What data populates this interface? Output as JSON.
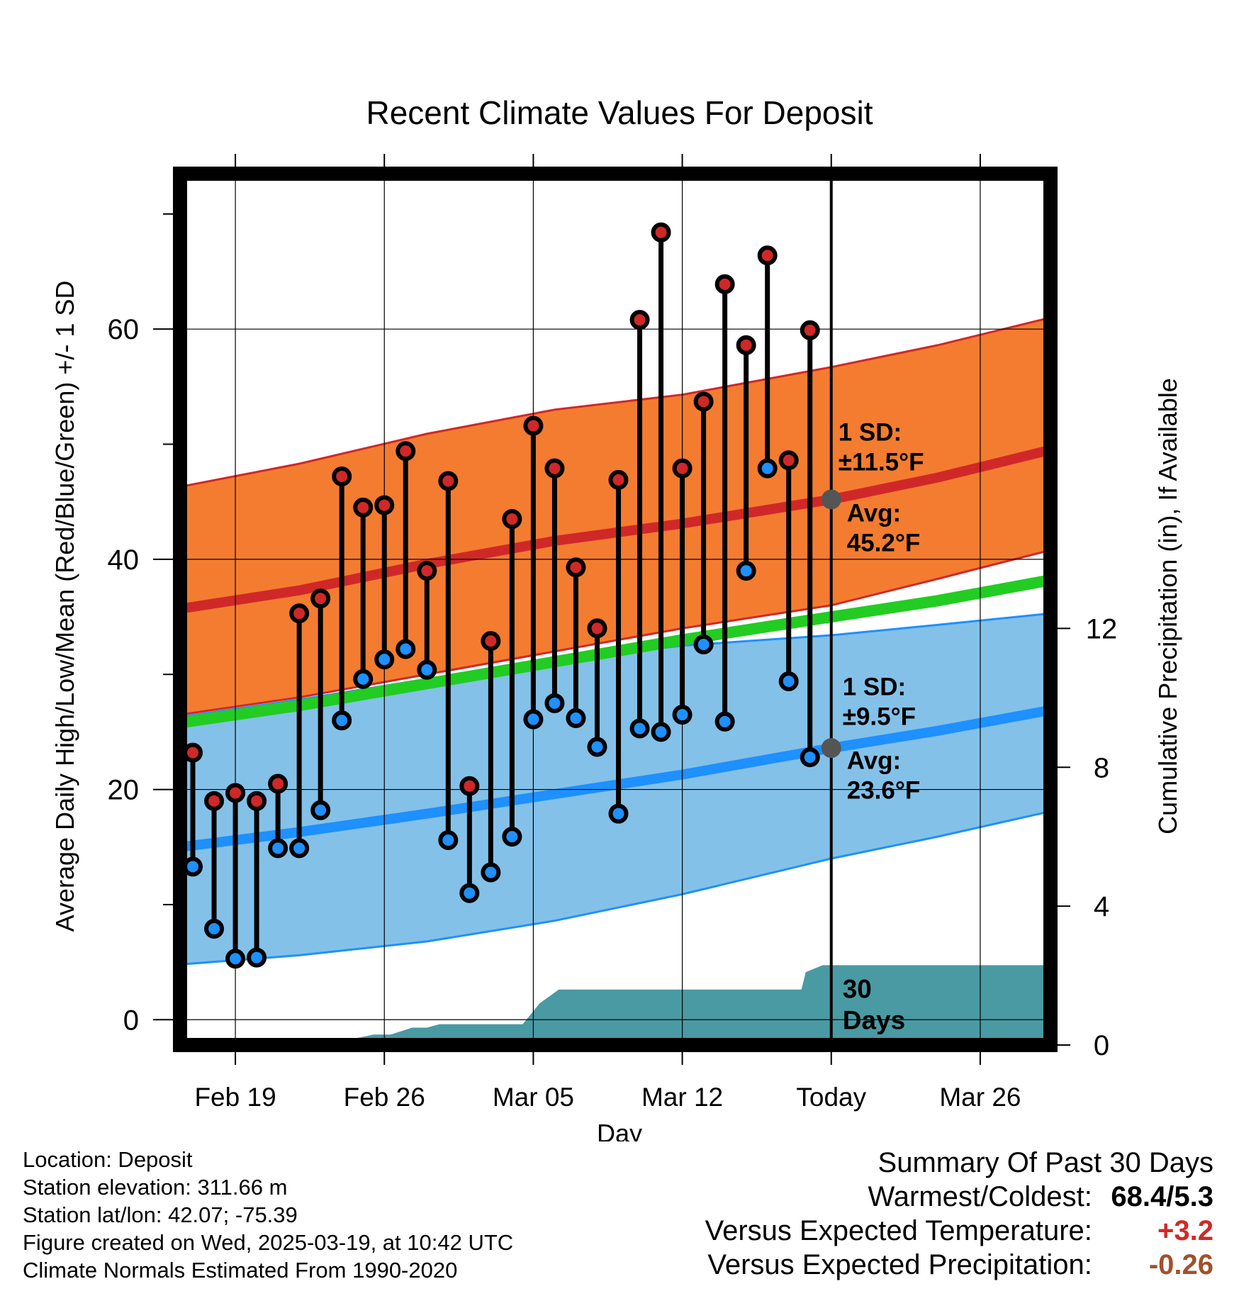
{
  "chart_data": {
    "type": "line",
    "title": "Recent Climate Values For Deposit",
    "xlabel": "Day",
    "ylabel": "Average Daily High/Low/Mean (Red/Blue/Green) +/- 1 SD",
    "y2label": "Cumulative Precipitation (in), If Available",
    "x_ticks": [
      "Feb 19",
      "Feb 26",
      "Mar 05",
      "Mar 12",
      "Today",
      "Mar 26"
    ],
    "x_tick_day": [
      0,
      7,
      14,
      21,
      28,
      35
    ],
    "xlim": [
      -2.6,
      38.3
    ],
    "ylim": [
      -2.2,
      73.5
    ],
    "y_ticks": [
      0,
      20,
      40,
      60
    ],
    "y2lim": [
      0,
      25.1
    ],
    "y2_ticks": [
      0,
      4,
      8,
      12
    ],
    "grid": true,
    "today_day": 28,
    "daily": {
      "day": [
        -2,
        -1,
        0,
        1,
        2,
        3,
        4,
        5,
        6,
        7,
        8,
        9,
        10,
        11,
        12,
        13,
        14,
        15,
        16,
        17,
        18,
        19,
        20,
        21,
        22,
        23,
        24,
        25,
        26,
        27
      ],
      "high": [
        23.2,
        19.0,
        19.7,
        19.0,
        20.5,
        35.3,
        36.6,
        47.2,
        44.5,
        44.7,
        49.4,
        39.0,
        46.8,
        20.3,
        32.9,
        43.5,
        51.6,
        47.9,
        39.3,
        34.0,
        46.9,
        60.8,
        68.4,
        47.9,
        53.7,
        63.9,
        58.6,
        66.4,
        48.6,
        59.9
      ],
      "low": [
        13.3,
        7.9,
        5.3,
        5.4,
        14.9,
        14.9,
        18.2,
        26.0,
        29.6,
        31.3,
        32.2,
        30.4,
        15.6,
        11.0,
        12.8,
        15.9,
        26.1,
        27.5,
        26.2,
        23.7,
        17.9,
        25.3,
        25.0,
        26.5,
        32.6,
        25.9,
        39.0,
        47.9,
        29.4,
        22.8
      ]
    },
    "normals": {
      "day": [
        -2.6,
        3,
        9,
        15,
        21,
        28,
        33,
        38.3
      ],
      "high_mean": [
        35.7,
        37.3,
        39.6,
        41.6,
        43.1,
        45.2,
        47.1,
        49.5
      ],
      "high_sd_upper": [
        46.3,
        48.3,
        50.9,
        53.0,
        54.3,
        56.7,
        58.6,
        61.0
      ],
      "high_sd_lower": [
        26.5,
        28.0,
        30.0,
        32.0,
        34.0,
        36.0,
        38.3,
        40.8
      ],
      "low_mean": [
        15.0,
        16.3,
        17.9,
        19.6,
        21.3,
        23.6,
        25.1,
        26.9
      ],
      "low_sd_upper": [
        26.3,
        27.8,
        29.6,
        31.2,
        32.5,
        33.4,
        34.3,
        35.3
      ],
      "low_sd_lower": [
        4.8,
        5.6,
        6.8,
        8.6,
        10.9,
        14.0,
        15.9,
        18.1
      ],
      "mean_mean": [
        25.8,
        27.3,
        29.2,
        31.1,
        33.0,
        35.0,
        36.4,
        38.2
      ]
    },
    "precip_cumulative": {
      "day": [
        -2.6,
        3.5,
        5.7,
        6.5,
        7.3,
        8.3,
        9.0,
        9.6,
        13.5,
        14.3,
        15.2,
        17.5,
        21.5,
        22.2,
        26.6,
        26.8,
        27.6,
        30,
        38.3
      ],
      "values": [
        0,
        0,
        0.2,
        0.3,
        0.3,
        0.5,
        0.5,
        0.6,
        0.6,
        1.2,
        1.6,
        1.6,
        1.6,
        1.6,
        1.6,
        2.1,
        2.3,
        2.3,
        2.3
      ]
    },
    "annotations": {
      "high_sd": "1 SD:\n±11.5°F",
      "high_avg": "Avg:\n45.2°F",
      "low_sd": "1 SD:\n±9.5°F",
      "low_avg": "Avg:\n23.6°F",
      "precip_days": "30\nDays"
    },
    "colors": {
      "high_band": "#f47c30",
      "high_line": "#d02828",
      "low_band": "#84c1e8",
      "low_line": "#1e90ff",
      "mean_line": "#22cc22",
      "precip": "#4a9aa3",
      "annotation": "#555555"
    }
  },
  "info": {
    "location": "Location: Deposit",
    "elevation": "Station elevation: 311.66 m",
    "latlon": "Station lat/lon: 42.07; -75.39",
    "created": "Figure created on Wed, 2025-03-19, at 10:42 UTC",
    "normals": "Climate Normals Estimated From 1990-2020"
  },
  "summary": {
    "heading": "Summary Of Past 30 Days",
    "warmest_label": "Warmest/Coldest:",
    "warmest_value": "68.4/5.3",
    "temp_label": "Versus Expected Temperature:",
    "temp_value": "+3.2",
    "temp_color": "#d02828",
    "precip_label": "Versus Expected Precipitation:",
    "precip_value": "-0.26",
    "precip_color": "#a0522d"
  }
}
